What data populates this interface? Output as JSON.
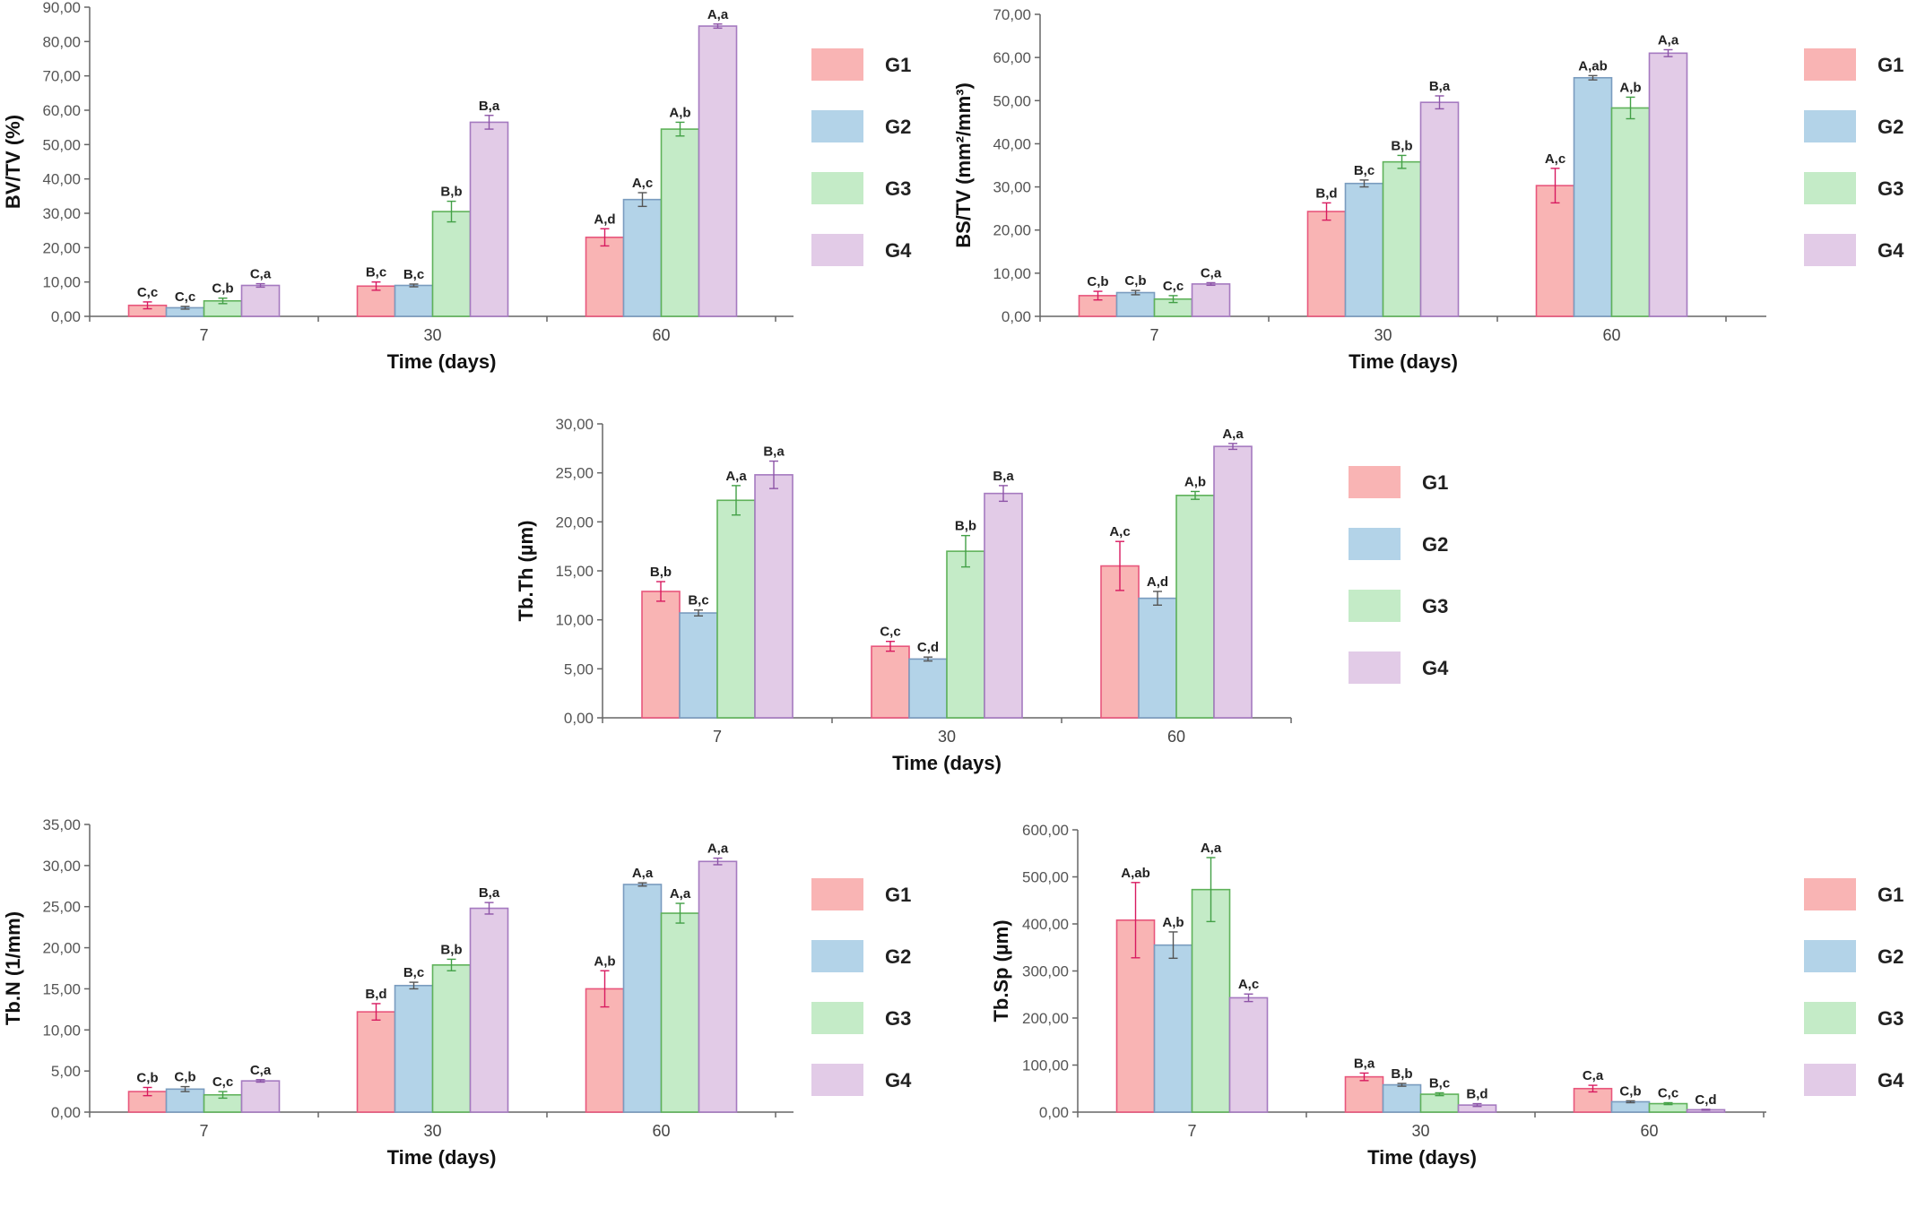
{
  "legend": [
    "G1",
    "G2",
    "G3",
    "G4"
  ],
  "colors": {
    "fill": [
      "#f9b4b4",
      "#b3d3e8",
      "#c4ebc7",
      "#e2cbe7"
    ],
    "stroke": [
      "#e8567c",
      "#7a9cbf",
      "#5fb25a",
      "#a57ac0"
    ],
    "err": [
      "#d81b60",
      "#555555",
      "#43a047",
      "#8e55a8"
    ]
  },
  "chart_data": [
    {
      "type": "bar",
      "ylabel": "BV/TV (%)",
      "xlabel": "Time (days)",
      "categories": [
        "7",
        "30",
        "60"
      ],
      "ylim": [
        0,
        90
      ],
      "yticks": [
        "0,00",
        "10,00",
        "20,00",
        "30,00",
        "40,00",
        "50,00",
        "60,00",
        "70,00",
        "80,00",
        "90,00"
      ],
      "legend_position": "right",
      "series": [
        {
          "name": "G1",
          "values": [
            3.2,
            8.8,
            23.0
          ],
          "errors": [
            1.0,
            1.2,
            2.5
          ],
          "labels": [
            "C,c",
            "B,c",
            "A,d"
          ]
        },
        {
          "name": "G2",
          "values": [
            2.5,
            9.0,
            34.0
          ],
          "errors": [
            0.4,
            0.4,
            2.0
          ],
          "labels": [
            "C,c",
            "B,c",
            "A,c"
          ]
        },
        {
          "name": "G3",
          "values": [
            4.5,
            30.5,
            54.5
          ],
          "errors": [
            0.8,
            3.0,
            2.0
          ],
          "labels": [
            "C,b",
            "B,b",
            "A,b"
          ]
        },
        {
          "name": "G4",
          "values": [
            9.0,
            56.5,
            84.5
          ],
          "errors": [
            0.5,
            2.0,
            0.6
          ],
          "labels": [
            "C,a",
            "B,a",
            "A,a"
          ]
        }
      ]
    },
    {
      "type": "bar",
      "ylabel": "BS/TV (mm²/mm³)",
      "xlabel": "Time (days)",
      "categories": [
        "7",
        "30",
        "60"
      ],
      "ylim": [
        0,
        70
      ],
      "yticks": [
        "0,00",
        "10,00",
        "20,00",
        "30,00",
        "40,00",
        "50,00",
        "60,00",
        "70,00"
      ],
      "legend_position": "right",
      "series": [
        {
          "name": "G1",
          "values": [
            4.8,
            24.3,
            30.3
          ],
          "errors": [
            1.0,
            2.0,
            4.0
          ],
          "labels": [
            "C,b",
            "B,d",
            "A,c"
          ]
        },
        {
          "name": "G2",
          "values": [
            5.5,
            30.8,
            55.3
          ],
          "errors": [
            0.5,
            0.8,
            0.5
          ],
          "labels": [
            "C,b",
            "B,c",
            "A,ab"
          ]
        },
        {
          "name": "G3",
          "values": [
            4.0,
            35.8,
            48.3
          ],
          "errors": [
            0.8,
            1.5,
            2.5
          ],
          "labels": [
            "C,c",
            "B,b",
            "A,b"
          ]
        },
        {
          "name": "G4",
          "values": [
            7.5,
            49.6,
            61.0
          ],
          "errors": [
            0.3,
            1.5,
            0.8
          ],
          "labels": [
            "C,a",
            "B,a",
            "A,a"
          ]
        }
      ]
    },
    {
      "type": "bar",
      "ylabel": "Tb.Th (µm)",
      "xlabel": "Time (days)",
      "categories": [
        "7",
        "30",
        "60"
      ],
      "ylim": [
        0,
        30
      ],
      "yticks": [
        "0,00",
        "5,00",
        "10,00",
        "15,00",
        "20,00",
        "25,00",
        "30,00"
      ],
      "legend_position": "right",
      "series": [
        {
          "name": "G1",
          "values": [
            12.9,
            7.3,
            15.5
          ],
          "errors": [
            1.0,
            0.5,
            2.5
          ],
          "labels": [
            "B,b",
            "C,c",
            "A,c"
          ]
        },
        {
          "name": "G2",
          "values": [
            10.7,
            6.0,
            12.2
          ],
          "errors": [
            0.3,
            0.2,
            0.7
          ],
          "labels": [
            "B,c",
            "C,d",
            "A,d"
          ]
        },
        {
          "name": "G3",
          "values": [
            22.2,
            17.0,
            22.7
          ],
          "errors": [
            1.5,
            1.6,
            0.4
          ],
          "labels": [
            "A,a",
            "B,b",
            "A,b"
          ]
        },
        {
          "name": "G4",
          "values": [
            24.8,
            22.9,
            27.7
          ],
          "errors": [
            1.4,
            0.8,
            0.3
          ],
          "labels": [
            "B,a",
            "B,a",
            "A,a"
          ]
        }
      ]
    },
    {
      "type": "bar",
      "ylabel": "Tb.N (1/mm)",
      "xlabel": "Time (days)",
      "categories": [
        "7",
        "30",
        "60"
      ],
      "ylim": [
        0,
        35
      ],
      "yticks": [
        "0,00",
        "5,00",
        "10,00",
        "15,00",
        "20,00",
        "25,00",
        "30,00",
        "35,00"
      ],
      "legend_position": "right",
      "series": [
        {
          "name": "G1",
          "values": [
            2.5,
            12.2,
            15.0
          ],
          "errors": [
            0.5,
            1.0,
            2.2
          ],
          "labels": [
            "C,b",
            "B,d",
            "A,b"
          ]
        },
        {
          "name": "G2",
          "values": [
            2.8,
            15.4,
            27.7
          ],
          "errors": [
            0.3,
            0.4,
            0.2
          ],
          "labels": [
            "C,b",
            "B,c",
            "A,a"
          ]
        },
        {
          "name": "G3",
          "values": [
            2.1,
            17.9,
            24.2
          ],
          "errors": [
            0.4,
            0.7,
            1.2
          ],
          "labels": [
            "C,c",
            "B,b",
            "A,a"
          ]
        },
        {
          "name": "G4",
          "values": [
            3.8,
            24.8,
            30.5
          ],
          "errors": [
            0.15,
            0.7,
            0.4
          ],
          "labels": [
            "C,a",
            "B,a",
            "A,a"
          ]
        }
      ]
    },
    {
      "type": "bar",
      "ylabel": "Tb.Sp (µm)",
      "xlabel": "Time (days)",
      "categories": [
        "7",
        "30",
        "60"
      ],
      "ylim": [
        0,
        600
      ],
      "yticks": [
        "0,00",
        "100,00",
        "200,00",
        "300,00",
        "400,00",
        "500,00",
        "600,00"
      ],
      "legend_position": "right",
      "series": [
        {
          "name": "G1",
          "values": [
            408,
            75,
            50
          ],
          "errors": [
            80,
            8,
            7
          ],
          "labels": [
            "A,ab",
            "B,a",
            "C,a"
          ]
        },
        {
          "name": "G2",
          "values": [
            355,
            58,
            22
          ],
          "errors": [
            28,
            3,
            2
          ],
          "labels": [
            "A,b",
            "B,b",
            "C,b"
          ]
        },
        {
          "name": "G3",
          "values": [
            473,
            38,
            18
          ],
          "errors": [
            68,
            3,
            2
          ],
          "labels": [
            "A,a",
            "B,c",
            "C,c"
          ]
        },
        {
          "name": "G4",
          "values": [
            243,
            15,
            5
          ],
          "errors": [
            8,
            3,
            1
          ],
          "labels": [
            "A,c",
            "B,d",
            "C,d"
          ]
        }
      ]
    }
  ]
}
